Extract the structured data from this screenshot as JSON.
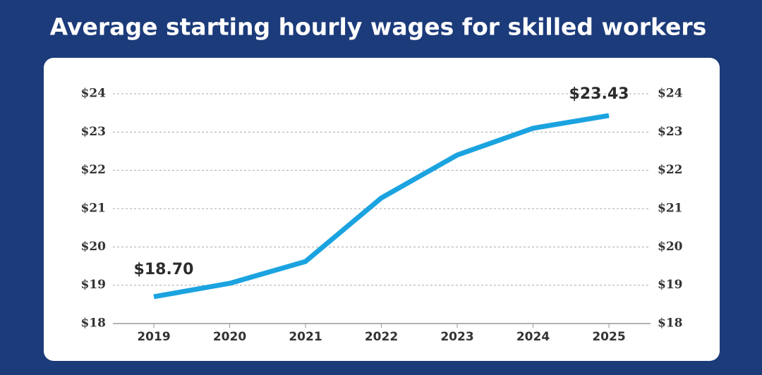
{
  "chart_data": {
    "type": "line",
    "title": "Average starting hourly wages for skilled workers",
    "categories": [
      "2019",
      "2020",
      "2021",
      "2022",
      "2023",
      "2024",
      "2025"
    ],
    "series": [
      {
        "color": "#1ba3e0",
        "values": [
          18.7,
          19.05,
          19.62,
          21.28,
          22.4,
          23.1,
          23.43
        ],
        "value_labels": [
          "$18.70",
          null,
          null,
          null,
          null,
          null,
          "$23.43"
        ]
      }
    ],
    "ylim": [
      18,
      24
    ],
    "yticks": [
      {
        "value": 18,
        "label": "$18"
      },
      {
        "value": 19,
        "label": "$19"
      },
      {
        "value": 20,
        "label": "$20"
      },
      {
        "value": 21,
        "label": "$21"
      },
      {
        "value": 22,
        "label": "$22"
      },
      {
        "value": 23,
        "label": "$23"
      },
      {
        "value": 24,
        "label": "$24"
      }
    ],
    "y2lim": [
      18,
      24
    ],
    "y2ticks": [
      {
        "value": 18,
        "label": "$18"
      },
      {
        "value": 19,
        "label": "$19"
      },
      {
        "value": 20,
        "label": "$20"
      },
      {
        "value": 21,
        "label": "$21"
      },
      {
        "value": 22,
        "label": "$22"
      },
      {
        "value": 23,
        "label": "$23"
      },
      {
        "value": 24,
        "label": "$24"
      }
    ],
    "grid": true
  }
}
